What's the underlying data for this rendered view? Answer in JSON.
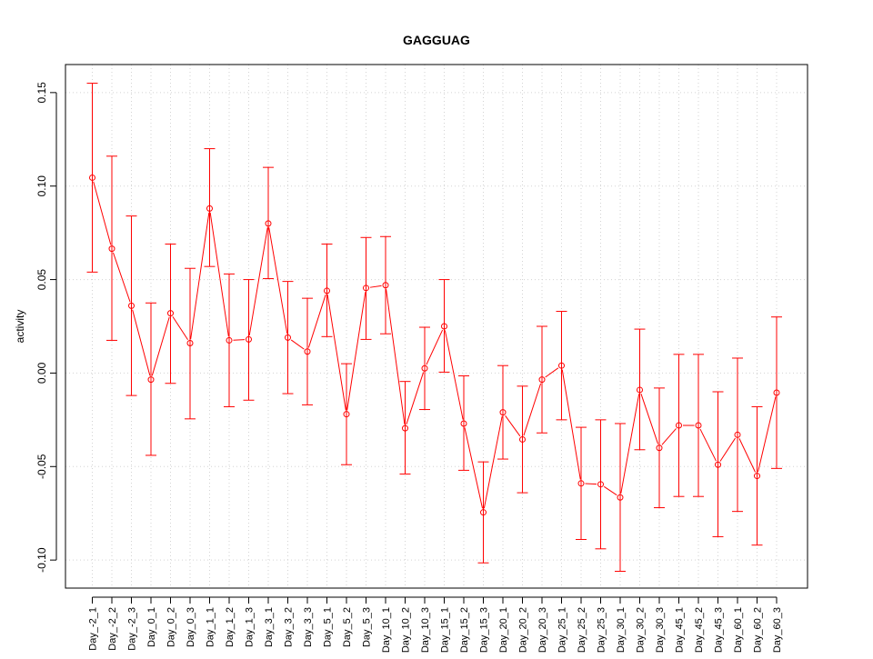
{
  "chart_data": {
    "type": "line",
    "title": "GAGGUAG",
    "xlabel": "",
    "ylabel": "activity",
    "ylim": [
      -0.115,
      0.165
    ],
    "yticks": [
      -0.1,
      -0.05,
      0.0,
      0.05,
      0.1,
      0.15
    ],
    "ytick_labels": [
      "-0.10",
      "-0.05",
      "0.00",
      "0.05",
      "0.10",
      "0.15"
    ],
    "grid": true,
    "line_color": "#ff0000",
    "grid_color": "#d3d3d3",
    "categories": [
      "Day_-2_1",
      "Day_-2_2",
      "Day_-2_3",
      "Day_0_1",
      "Day_0_2",
      "Day_0_3",
      "Day_1_1",
      "Day_1_2",
      "Day_1_3",
      "Day_3_1",
      "Day_3_2",
      "Day_3_3",
      "Day_5_1",
      "Day_5_2",
      "Day_5_3",
      "Day_10_1",
      "Day_10_2",
      "Day_10_3",
      "Day_15_1",
      "Day_15_2",
      "Day_15_3",
      "Day_20_1",
      "Day_20_2",
      "Day_20_3",
      "Day_25_1",
      "Day_25_2",
      "Day_25_3",
      "Day_30_1",
      "Day_30_2",
      "Day_30_3",
      "Day_45_1",
      "Day_45_2",
      "Day_45_3",
      "Day_60_1",
      "Day_60_2",
      "Day_60_3"
    ],
    "values": [
      0.1045,
      0.0665,
      0.036,
      -0.0035,
      0.032,
      0.016,
      0.088,
      0.0175,
      0.018,
      0.08,
      0.019,
      0.0115,
      0.044,
      -0.022,
      0.0455,
      0.047,
      -0.0295,
      0.0025,
      0.025,
      -0.027,
      -0.0745,
      -0.021,
      -0.0355,
      -0.0035,
      0.004,
      -0.059,
      -0.0595,
      -0.0665,
      -0.009,
      -0.04,
      -0.028,
      -0.028,
      -0.049,
      -0.033,
      -0.055,
      -0.0105
    ],
    "upper": [
      0.155,
      0.116,
      0.084,
      0.0375,
      0.069,
      0.056,
      0.12,
      0.053,
      0.05,
      0.11,
      0.049,
      0.04,
      0.069,
      0.005,
      0.0725,
      0.073,
      -0.0045,
      0.0245,
      0.05,
      -0.0015,
      -0.0475,
      0.004,
      -0.007,
      0.025,
      0.033,
      -0.029,
      -0.025,
      -0.027,
      0.0235,
      -0.008,
      0.01,
      0.01,
      -0.01,
      0.008,
      -0.018,
      0.03
    ],
    "lower": [
      0.054,
      0.0175,
      -0.012,
      -0.044,
      -0.0055,
      -0.0245,
      0.057,
      -0.018,
      -0.0145,
      0.0505,
      -0.011,
      -0.017,
      0.0195,
      -0.049,
      0.018,
      0.021,
      -0.054,
      -0.0195,
      0.0005,
      -0.052,
      -0.1015,
      -0.046,
      -0.064,
      -0.032,
      -0.025,
      -0.089,
      -0.094,
      -0.106,
      -0.041,
      -0.072,
      -0.066,
      -0.066,
      -0.0875,
      -0.074,
      -0.092,
      -0.051
    ]
  }
}
